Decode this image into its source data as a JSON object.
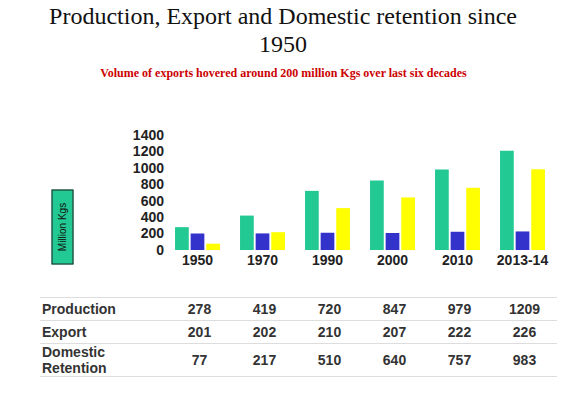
{
  "chart_data": {
    "type": "bar",
    "title": "Production, Export and Domestic retention since 1950",
    "subtitle": "Volume of exports hovered around 200 million Kgs over last six decades",
    "y_label": "Million Kgs",
    "categories": [
      "1950",
      "1970",
      "1990",
      "2000",
      "2010",
      "2013-14"
    ],
    "series": [
      {
        "name": "Production",
        "color": "#22c993",
        "values": [
          278,
          419,
          720,
          847,
          979,
          1209
        ]
      },
      {
        "name": "Export",
        "color": "#3333cc",
        "values": [
          201,
          202,
          210,
          207,
          222,
          226
        ]
      },
      {
        "name": "Domestic Retention",
        "color": "#ffff00",
        "values": [
          77,
          217,
          510,
          640,
          757,
          983
        ]
      }
    ],
    "ylim": [
      0,
      1400
    ],
    "yticks": [
      0,
      200,
      400,
      600,
      800,
      1000,
      1200,
      1400
    ],
    "grid": false
  }
}
